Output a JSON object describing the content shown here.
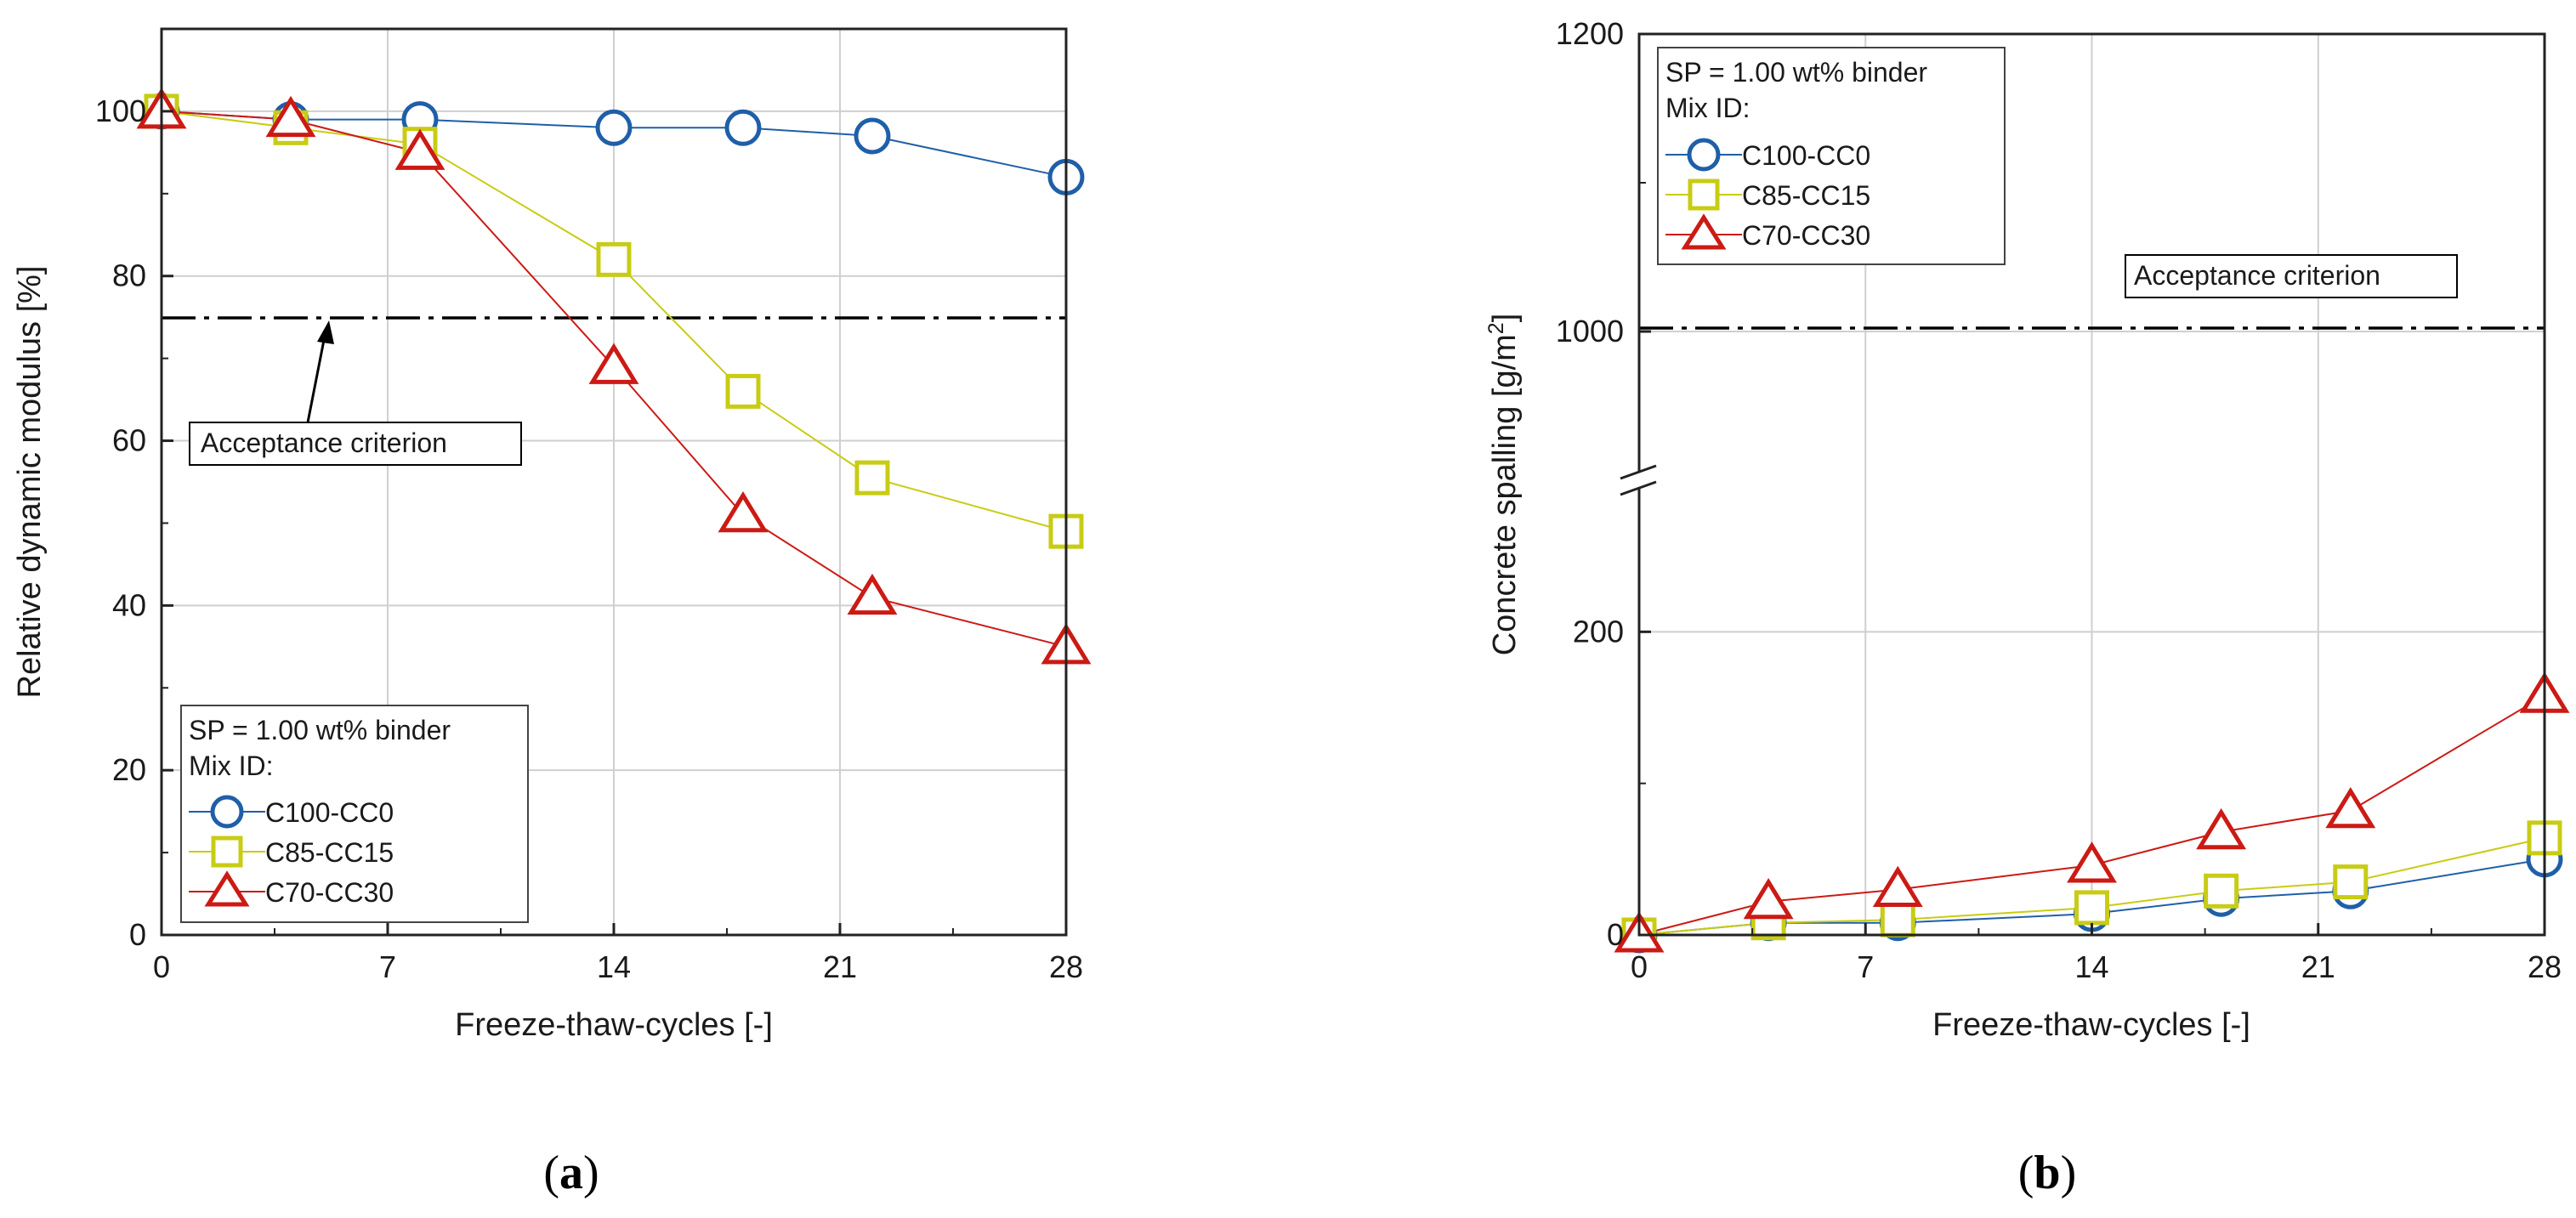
{
  "chart_data": [
    {
      "type": "line",
      "panel_label": "a",
      "xlabel": "Freeze-thaw-cycles [-]",
      "ylabel": "Relative dynamic modulus [%]",
      "xlim": [
        0,
        28
      ],
      "ylim": [
        0,
        110
      ],
      "xticks": [
        0,
        7,
        14,
        21,
        28
      ],
      "yticks": [
        0,
        20,
        40,
        60,
        80,
        100
      ],
      "grid": true,
      "x": [
        0,
        4,
        8,
        14,
        18,
        22,
        28
      ],
      "series": [
        {
          "name": "C100-CC0",
          "marker": "circle",
          "color": "#1f5fa8",
          "values": [
            100,
            99,
            99,
            98,
            98,
            97,
            92
          ]
        },
        {
          "name": "C85-CC15",
          "marker": "square",
          "color": "#c8cc14",
          "values": [
            100,
            98,
            96,
            82,
            66,
            55.5,
            49
          ]
        },
        {
          "name": "C70-CC30",
          "marker": "triangle",
          "color": "#cc1a14",
          "values": [
            100,
            99,
            95,
            69,
            51,
            41,
            35
          ]
        }
      ],
      "reference_line": {
        "y": 75,
        "label": "Acceptance criterion",
        "style": "dash-dot"
      },
      "legend": {
        "title": "SP = 1.00 wt% binder",
        "subtitle": "Mix ID:",
        "position": "bottom-left"
      }
    },
    {
      "type": "line",
      "panel_label": "b",
      "xlabel": "Freeze-thaw-cycles [-]",
      "ylabel": "Concrete spalling [g/m",
      "ylabel_superscript": "2",
      "ylabel_suffix": "]",
      "xlim": [
        0,
        28
      ],
      "ylim_lower": [
        0,
        300
      ],
      "ylim_upper": [
        900,
        1200
      ],
      "axis_break": true,
      "xticks": [
        0,
        7,
        14,
        21,
        28
      ],
      "yticks": [
        0,
        200,
        1000,
        1200
      ],
      "grid": true,
      "x": [
        0,
        4,
        8,
        14,
        18,
        22,
        28
      ],
      "series": [
        {
          "name": "C100-CC0",
          "marker": "circle",
          "color": "#1f5fa8",
          "values": [
            0,
            8,
            8,
            14,
            24,
            29,
            50
          ]
        },
        {
          "name": "C85-CC15",
          "marker": "square",
          "color": "#c8cc14",
          "values": [
            0,
            8,
            10,
            18,
            29,
            35,
            64
          ]
        },
        {
          "name": "C70-CC30",
          "marker": "triangle",
          "color": "#cc1a14",
          "values": [
            0,
            22,
            30,
            46,
            68,
            82,
            158
          ]
        }
      ],
      "reference_line": {
        "y": 1000,
        "label": "Acceptance criterion",
        "style": "dash-dot"
      },
      "legend": {
        "title": "SP = 1.00 wt% binder",
        "subtitle": "Mix ID:",
        "position": "top-left"
      }
    }
  ]
}
